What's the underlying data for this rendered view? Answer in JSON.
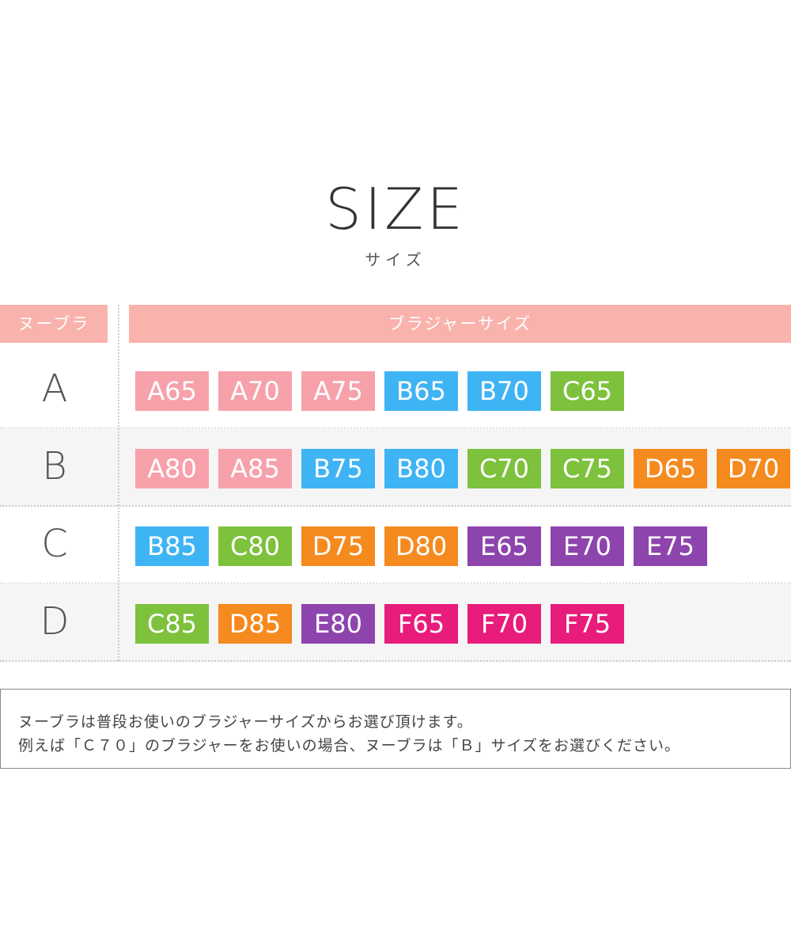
{
  "title": "SIZE",
  "subtitle": "サイズ",
  "table": {
    "header_left": "ヌーブラ",
    "header_right": "ブラジャーサイズ",
    "rows": [
      {
        "size": "A",
        "bra_sizes": [
          "A65",
          "A70",
          "A75",
          "B65",
          "B70",
          "C65"
        ]
      },
      {
        "size": "B",
        "bra_sizes": [
          "A80",
          "A85",
          "B75",
          "B80",
          "C70",
          "C75",
          "D65",
          "D70"
        ]
      },
      {
        "size": "C",
        "bra_sizes": [
          "B85",
          "C80",
          "D75",
          "D80",
          "E65",
          "E70",
          "E75"
        ]
      },
      {
        "size": "D",
        "bra_sizes": [
          "C85",
          "D85",
          "E80",
          "F65",
          "F70",
          "F75"
        ]
      }
    ]
  },
  "cup_colors": {
    "A": "#f7a1ab",
    "B": "#3fb4f4",
    "C": "#7dc13c",
    "D": "#f58a1f",
    "E": "#8e44ad",
    "F": "#e81c7a"
  },
  "note": {
    "line1": "ヌーブラは普段お使いのブラジャーサイズからお選び頂けます。",
    "line2": "例えば「Ｃ７０」のブラジャーをお使いの場合、ヌーブラは「Ｂ」サイズをお選びください。"
  }
}
